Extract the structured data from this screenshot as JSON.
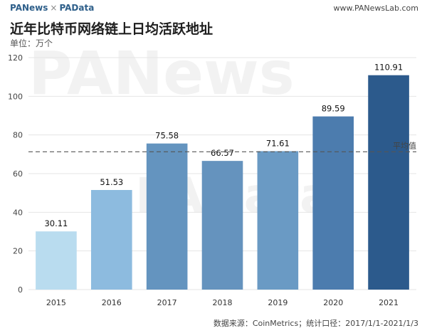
{
  "header": {
    "brand_a": "PANews",
    "brand_sep": "×",
    "brand_b": "PAData",
    "site": "www.PANewsLab.com"
  },
  "title": "近年比特币网络链上日均活跃地址",
  "unit": "单位：万个",
  "source": "数据来源：CoinMetrics；统计口径：2017/1/1-2021/1/3",
  "watermarks": [
    "PANews",
    "PAData"
  ],
  "chart_data": {
    "type": "bar",
    "title": "近年比特币网络链上日均活跃地址",
    "ylabel": "单位：万个",
    "categories": [
      "2015",
      "2016",
      "2017",
      "2018",
      "2019",
      "2020",
      "2021"
    ],
    "values": [
      30.11,
      51.53,
      75.58,
      66.57,
      71.61,
      89.59,
      110.91
    ],
    "value_labels": [
      "30.11",
      "51.53",
      "75.58",
      "66.57",
      "71.61",
      "89.59",
      "110.91"
    ],
    "ylim": [
      0,
      120
    ],
    "yticks": [
      0,
      20,
      40,
      60,
      80,
      100,
      120
    ],
    "grid": true,
    "bar_colors": [
      "#b9dcef",
      "#8dbbdf",
      "#6494bf",
      "#6593be",
      "#6a9ac4",
      "#4c7cae",
      "#2c5a8c"
    ],
    "reference_line": {
      "value": 71.3,
      "label": "平均值",
      "color": "#555555",
      "style": "dashed"
    }
  }
}
